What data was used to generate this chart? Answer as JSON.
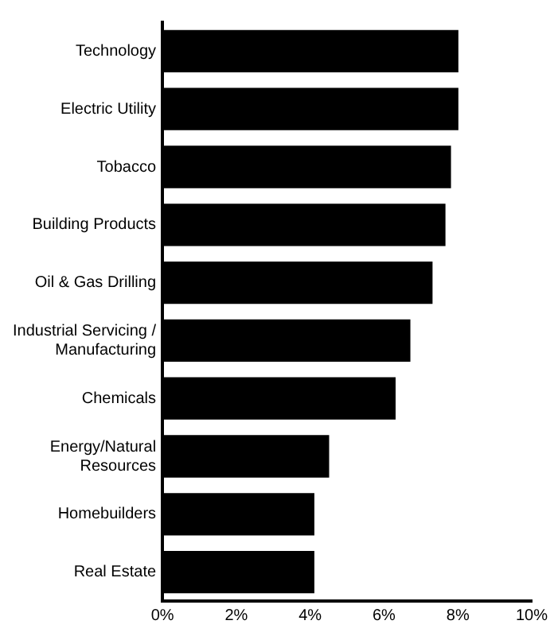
{
  "chart_data": {
    "type": "bar",
    "orientation": "horizontal",
    "categories": [
      "Technology",
      "Electric Utility",
      "Tobacco",
      "Building Products",
      "Oil & Gas Drilling",
      "Industrial Servicing / Manufacturing",
      "Chemicals",
      "Energy/Natural Resources",
      "Homebuilders",
      "Real Estate"
    ],
    "values": [
      8.0,
      8.0,
      7.8,
      7.65,
      7.3,
      6.7,
      6.3,
      4.5,
      4.1,
      4.1
    ],
    "color": "#000000",
    "xlim": [
      0,
      10
    ],
    "xticks": [
      {
        "value": 0,
        "label": "0%"
      },
      {
        "value": 2,
        "label": "2%"
      },
      {
        "value": 4,
        "label": "4%"
      },
      {
        "value": 6,
        "label": "6%"
      },
      {
        "value": 8,
        "label": "8%"
      },
      {
        "value": 10,
        "label": "10%"
      }
    ],
    "grid": false,
    "legend": false
  }
}
